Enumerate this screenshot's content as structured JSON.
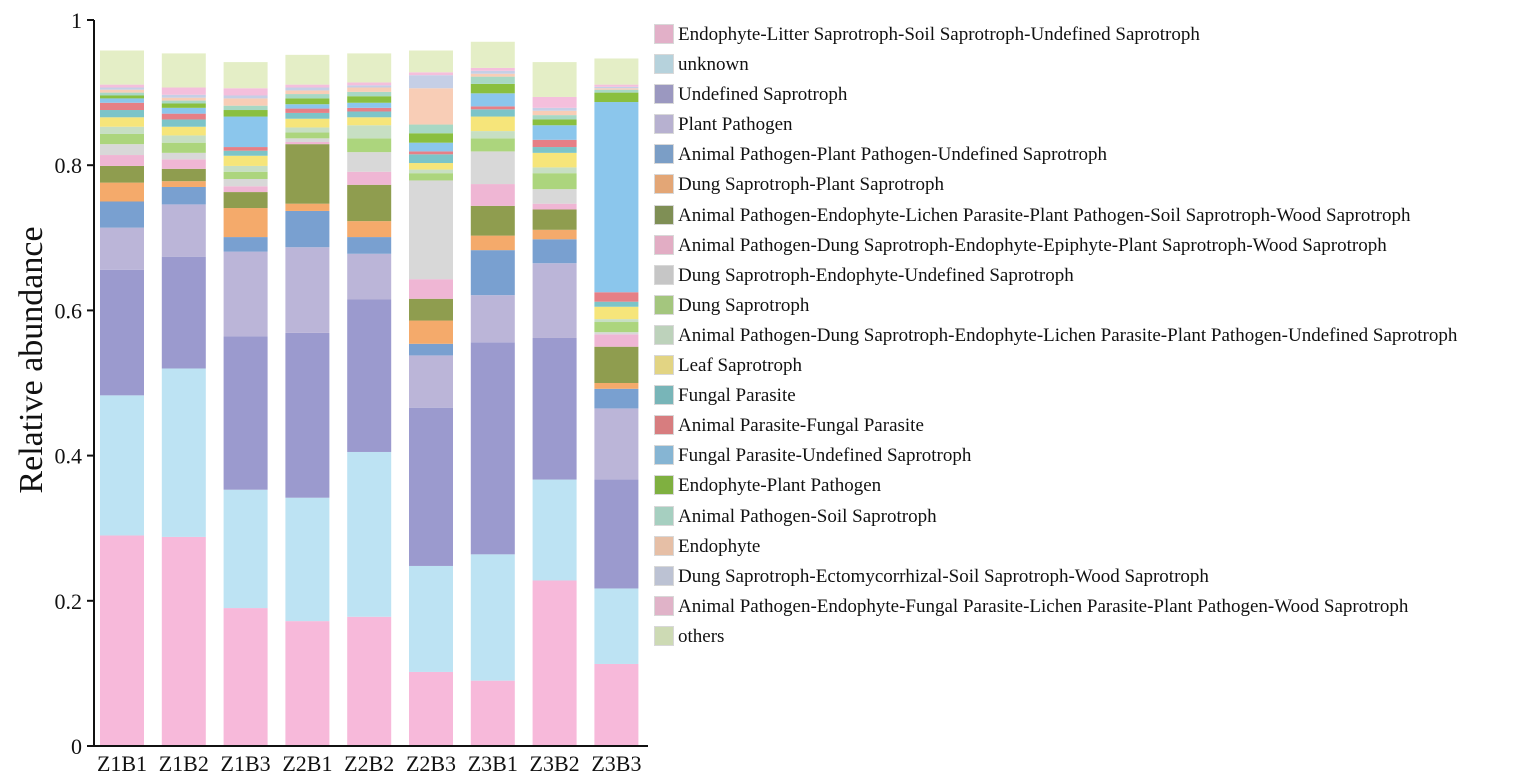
{
  "chart_data": {
    "type": "bar",
    "stacked": true,
    "ylabel": "Relative abundance",
    "xlabel": "",
    "ylim": [
      0,
      1
    ],
    "yticks": [
      "0",
      "0.2",
      "0.4",
      "0.6",
      "0.8",
      "1"
    ],
    "ytick_values": [
      0,
      0.2,
      0.4,
      0.6,
      0.8,
      1
    ],
    "categories": [
      "Z1B1",
      "Z1B2",
      "Z1B3",
      "Z2B1",
      "Z2B2",
      "Z2B3",
      "Z3B1",
      "Z3B2",
      "Z3B3"
    ],
    "legend_position": "right",
    "series": [
      {
        "name": "Endophyte-Litter Saprotroph-Soil Saprotroph-Undefined Saprotroph",
        "color": "#f7b9da",
        "values": [
          0.29,
          0.288,
          0.19,
          0.172,
          0.178,
          0.102,
          0.09,
          0.228,
          0.113
        ]
      },
      {
        "name": "unknown",
        "color": "#bde3f3",
        "values": [
          0.193,
          0.232,
          0.163,
          0.17,
          0.227,
          0.146,
          0.174,
          0.139,
          0.104
        ]
      },
      {
        "name": "Undefined Saprotroph",
        "color": "#9b9ace",
        "values": [
          0.173,
          0.154,
          0.211,
          0.227,
          0.21,
          0.218,
          0.292,
          0.195,
          0.15
        ]
      },
      {
        "name": "Plant Pathogen",
        "color": "#bbb5d8",
        "values": [
          0.058,
          0.072,
          0.117,
          0.118,
          0.063,
          0.072,
          0.065,
          0.103,
          0.098
        ]
      },
      {
        "name": "Animal Pathogen-Plant Pathogen-Undefined Saprotroph",
        "color": "#79a0d0",
        "values": [
          0.036,
          0.024,
          0.02,
          0.05,
          0.023,
          0.016,
          0.062,
          0.033,
          0.027
        ]
      },
      {
        "name": "Dung Saprotroph-Plant Saprotroph",
        "color": "#f4aa6b",
        "values": [
          0.026,
          0.008,
          0.04,
          0.01,
          0.022,
          0.032,
          0.02,
          0.013,
          0.008
        ]
      },
      {
        "name": "Animal Pathogen-Endophyte-Lichen Parasite-Plant Pathogen-Soil Saprotroph-Wood Saprotroph",
        "color": "#8f9d4f",
        "values": [
          0.023,
          0.017,
          0.022,
          0.082,
          0.05,
          0.03,
          0.041,
          0.028,
          0.05
        ]
      },
      {
        "name": "Animal Pathogen-Dung Saprotroph-Endophyte-Epiphyte-Plant Saprotroph-Wood Saprotroph",
        "color": "#efb6d4",
        "values": [
          0.015,
          0.013,
          0.008,
          0.003,
          0.018,
          0.027,
          0.03,
          0.008,
          0.017
        ]
      },
      {
        "name": "Dung Saprotroph-Endophyte-Undefined Saprotroph",
        "color": "#d8d8d8",
        "values": [
          0.015,
          0.009,
          0.01,
          0.005,
          0.027,
          0.136,
          0.045,
          0.02,
          0.003
        ]
      },
      {
        "name": "Dung Saprotroph",
        "color": "#acd57d",
        "values": [
          0.014,
          0.014,
          0.01,
          0.008,
          0.019,
          0.01,
          0.018,
          0.022,
          0.014
        ]
      },
      {
        "name": "Animal Pathogen-Dung Saprotroph-Endophyte-Lichen Parasite-Plant Pathogen-Undefined Saprotroph",
        "color": "#c7dfc3",
        "values": [
          0.01,
          0.01,
          0.008,
          0.007,
          0.018,
          0.005,
          0.01,
          0.008,
          0.004
        ]
      },
      {
        "name": "Leaf Saprotroph",
        "color": "#f6e57a",
        "values": [
          0.013,
          0.012,
          0.014,
          0.012,
          0.011,
          0.009,
          0.02,
          0.02,
          0.017
        ]
      },
      {
        "name": "Fungal Parasite",
        "color": "#7cc4c8",
        "values": [
          0.01,
          0.01,
          0.007,
          0.008,
          0.008,
          0.012,
          0.01,
          0.008,
          0.007
        ]
      },
      {
        "name": "Animal Parasite-Fungal Parasite",
        "color": "#e67f86",
        "values": [
          0.01,
          0.008,
          0.005,
          0.006,
          0.005,
          0.004,
          0.004,
          0.01,
          0.013
        ]
      },
      {
        "name": "Fungal Parasite-Undefined Saprotroph",
        "color": "#8bc6ec",
        "values": [
          0.006,
          0.008,
          0.042,
          0.006,
          0.007,
          0.012,
          0.018,
          0.02,
          0.262
        ]
      },
      {
        "name": "Endophyte-Plant Pathogen",
        "color": "#8abf3f",
        "values": [
          0.004,
          0.006,
          0.009,
          0.008,
          0.009,
          0.013,
          0.013,
          0.008,
          0.013
        ]
      },
      {
        "name": "Animal Pathogen-Soil Saprotroph",
        "color": "#a8d8c4",
        "values": [
          0.004,
          0.004,
          0.006,
          0.006,
          0.006,
          0.012,
          0.01,
          0.006,
          0.004
        ]
      },
      {
        "name": "Endophyte",
        "color": "#f8cdb6",
        "values": [
          0.004,
          0.004,
          0.01,
          0.005,
          0.006,
          0.05,
          0.004,
          0.006,
          0.002
        ]
      },
      {
        "name": "Dung Saprotroph-Ectomycorrhizal-Soil Saprotroph-Wood Saprotroph",
        "color": "#c5cfe6",
        "values": [
          0.003,
          0.004,
          0.004,
          0.004,
          0.003,
          0.018,
          0.004,
          0.004,
          0.002
        ]
      },
      {
        "name": "Animal Pathogen-Endophyte-Fungal Parasite-Lichen Parasite-Plant Pathogen-Wood Saprotroph",
        "color": "#f4bfdc",
        "values": [
          0.004,
          0.01,
          0.01,
          0.004,
          0.004,
          0.004,
          0.004,
          0.015,
          0.003
        ]
      },
      {
        "name": "others",
        "color": "#e4eec6",
        "values": [
          0.047,
          0.047,
          0.036,
          0.041,
          0.04,
          0.03,
          0.036,
          0.048,
          0.036
        ]
      }
    ],
    "legend_swatch_colors": [
      "#e2b0c8",
      "#b6d2dc",
      "#9b98c0",
      "#b7b1d0",
      "#7b9ec6",
      "#e3a676",
      "#7f8f55",
      "#e2adc4",
      "#c6c6c6",
      "#a4c67e",
      "#bdd2bb",
      "#e2d483",
      "#78b5b8",
      "#d77d7f",
      "#86b5d3",
      "#7fb040",
      "#a6cfc0",
      "#e6bfa6",
      "#bcc2d3",
      "#e0b3c8",
      "#cddab4"
    ]
  }
}
